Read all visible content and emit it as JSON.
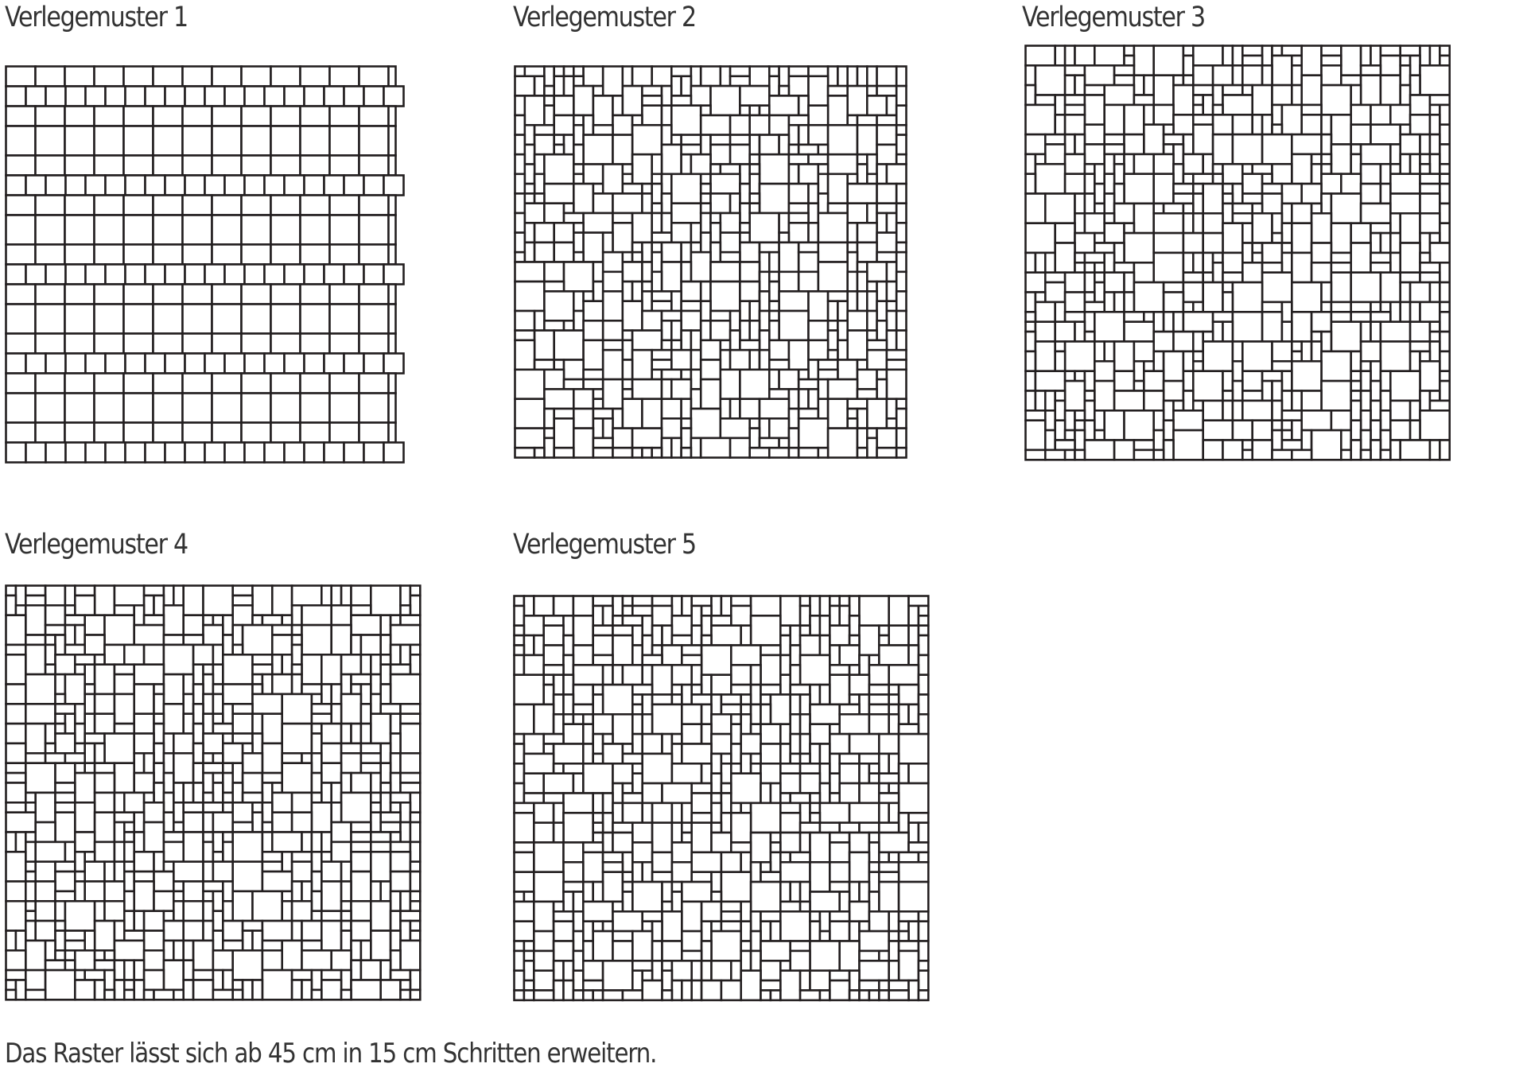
{
  "patterns": [
    {
      "title": "Verlegemuster 1"
    },
    {
      "title": "Verlegemuster 2"
    },
    {
      "title": "Verlegemuster 3"
    },
    {
      "title": "Verlegemuster 4"
    },
    {
      "title": "Verlegemuster 5"
    }
  ],
  "footer": "Das Raster lässt sich ab 45 cm in 15 cm Schritten erweitern.",
  "colors": {
    "line": "#231f20",
    "text": "#333333"
  }
}
